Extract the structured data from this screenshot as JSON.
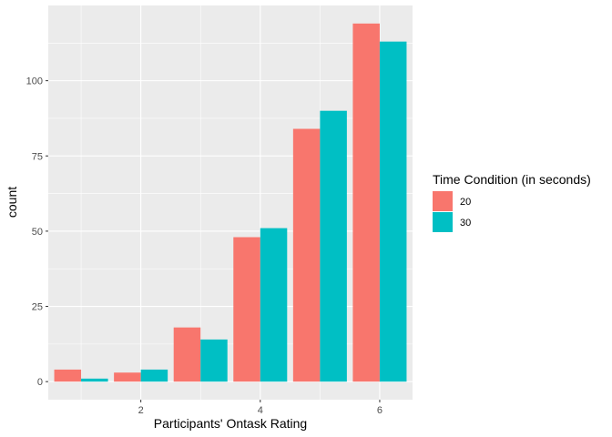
{
  "chart_data": {
    "type": "bar",
    "title": "",
    "xlabel": "Participants' Ontask Rating",
    "ylabel": "count",
    "x": [
      1,
      2,
      3,
      4,
      5,
      6
    ],
    "x_ticks": [
      2,
      4,
      6
    ],
    "y_ticks": [
      0,
      25,
      50,
      75,
      100
    ],
    "xlim": [
      0.45,
      6.55
    ],
    "ylim": [
      -6,
      125
    ],
    "grid": true,
    "legend": {
      "title": "Time Condition (in seconds)",
      "position": "right"
    },
    "series": [
      {
        "name": "20",
        "color": "#F8766D",
        "values": [
          4,
          3,
          18,
          48,
          84,
          119
        ]
      },
      {
        "name": "30",
        "color": "#00BFC4",
        "values": [
          1,
          4,
          14,
          51,
          90,
          113
        ]
      }
    ]
  }
}
